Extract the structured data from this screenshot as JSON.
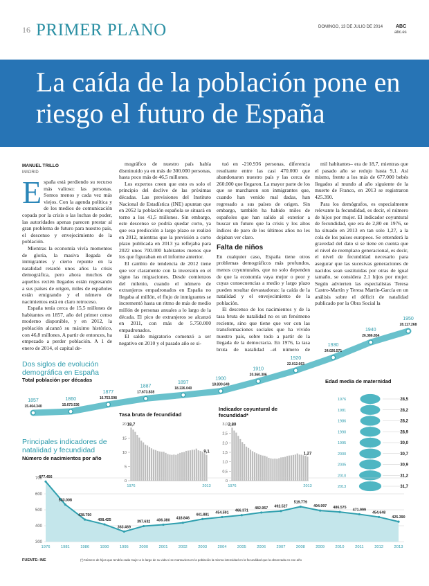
{
  "header": {
    "page_number": "16",
    "section": "PRIMER PLANO",
    "date": "DOMINGO, 13 DE JULIO DE 2014",
    "paper": "ABC",
    "website": "abc.es"
  },
  "headline": "La caída de la población pone en riesgo el futuro de España",
  "byline": {
    "author": "MANUEL TRILLO",
    "place": "MADRID"
  },
  "article": {
    "drop_cap": "E",
    "columns": [
      {
        "paragraphs": [
          "spaña está perdiendo su recurso más valioso: las personas. Somos menos y cada vez más viejos. Con la agenda política y de los medios de comunicación copada por la crisis o las luchas de poder, las autoridades apenas parecen prestar al gran problema de futuro para nuestro país, el descenso y envejecimiento de la población.",
          "Mientras la economía vivía momentos de gloria, la masiva llegada de inmigrantes y cierto repunte en la natalidad retardó unos años la crisis demográfica, pero ahora muchos de aquellos recién llegados están regresando a sus países de origen, miles de españoles están emigrando y el número de nacimientos está en claro retroceso.",
          "España tenía cerca de 15,5 millones de habitantes en 1857, año del primer censo moderno disponible, y en 2012, la población alcanzó su máximo histórico, con 46,8 millones. A partir de entonces, ha empezado a perder población. A 1 de enero de 2014, el capital de-"
        ]
      },
      {
        "paragraphs": [
          "mográfico de nuestro país había disminuido ya en más de 300.000 personas, hasta poco más de 46,5 millones.",
          "Los expertos creen que esto es solo el principio del declive de las próximas décadas. Las previsiones del Instituto Nacional de Estadística (INE) apuntan que en 2052 la población española se situará en torno a los 41,5 millones. Sin embargo, este descenso se podría quedar corto, ya que esa predicción a largo plazo se realizó en 2012, mientras que la previsión a corto plazo publicada en 2013 ya reflejaba para 2022 unos 700.000 habitantes menos que los que figuraban en el informe anterior.",
          "El cambio de tendencia de 2012 tiene que ver claramente con la inversión en el signo las migraciones. Desde comienzos del milenio, cuando el número de extranjeros empadronados en España no llegaba al millón, el flujo de inmigrantes se incrementó hasta un ritmo de más de medio millón de personas anuales a lo largo de la década. El pico de extranjeros se alcanzó en 2011, con más de 5.750.000 empadronados.",
          "El saldo migratorio comenzó a ser negativo en 2010 y el pasado año se si-"
        ]
      },
      {
        "paragraphs": [
          "tuó en -210.936 personas, diferencia resultante entre las casi 470.000 que abandonaron nuestro país y las cerca de 260.000 que llegaron. La mayor parte de los que se marcharon son inmigrantes que, cuando han venido mal dadas, han regresado a sus países de origen. Sin embargo, también ha habido miles de españoles que han salido al exterior a buscar un futuro que la crisis y los altos índices de paro de los últimos años no les dejaban ver claro."
        ],
        "subhead": "Falta de niños",
        "paragraphs_after": [
          "En cualquier caso, España tiene otros problemas demográficos más profundos, menos coyunturales, que no solo dependen de que la economía vaya mejor o peor y cuyas consecuencias a medio y largo plazo pueden resultar devastadoras: la caída de la natalidad y el envejecimiento de la población.",
          "El descenso de los nacimientos y de la tasa bruta de natalidad no es un fenómeno reciente, sino que tiene que ver con las transformaciones sociales que ha vivido nuestro país, sobre todo a partir de la llegada de la democracia. En 1976, la tasa bruta de natalidad –el número de nacimientos por cada"
        ]
      },
      {
        "paragraphs": [
          "mil habitantes– era de 18,7, mientras que el pasado año se redujo hasta 9,1. Así mismo, frente a los más de 677.000 bebés llegados al mundo al año siguiente de la muerte de Franco, en 2013 se registraron 425.390.",
          "Para los demógrafos, es especialmente relevante la fecundidad, es decir, el número de hijos por mujer. El indicador coyuntural de fecundidad, que era de 2,80 en 1976, se ha situado en 2013 en tan solo 1,27, a la cola de los países europeos. Se entenderá la gravedad del dato si se tiene en cuenta que el nivel de reemplazo generacional, es decir, el nivel de fecundidad necesario para asegurar que las sucesivas generaciones de nacidos sean sustituidas por otras de igual tamaño, se considera 2,1 hijos por mujer. Según advierten las especialistas Teresa Castro-Martín y Teresa Martín-García en un análisis sobre el déficit de natalidad publicado por la Obra Social la"
        ]
      }
    ]
  },
  "chart_data": [
    {
      "type": "line",
      "title": "Dos siglos de evolución demográfica en España",
      "subtitle": "Total población por décadas",
      "color": "#4fb6c3",
      "categories": [
        "1857",
        "1860",
        "1877",
        "1887",
        "1897",
        "1900",
        "1910",
        "1920",
        "1930",
        "1940",
        "1950"
      ],
      "values": [
        15464340,
        15673536,
        16753598,
        17673838,
        18226040,
        18830649,
        20360306,
        22012663,
        24026571,
        26386854,
        28117268
      ],
      "value_labels": [
        "15.464.340",
        "15.673.536",
        "16.753.598",
        "17.673.838",
        "18.226.040",
        "18.830.649",
        "20.360.306",
        "22.012.663",
        "24.026.571",
        "26.386.854",
        "28.117.268"
      ]
    },
    {
      "type": "bar",
      "title": "Tasa bruta de fecundidad",
      "color": "#bdbdbd",
      "categories": [
        "1976",
        null,
        null,
        null,
        null,
        null,
        null,
        null,
        null,
        null,
        null,
        null,
        null,
        null,
        null,
        null,
        null,
        null,
        null,
        null,
        null,
        null,
        null,
        null,
        null,
        null,
        null,
        null,
        null,
        null,
        null,
        null,
        null,
        null,
        null,
        null,
        null,
        "2013"
      ],
      "values": [
        18.7,
        18.0,
        17.2,
        16.1,
        15.2,
        14.1,
        13.5,
        12.7,
        12.4,
        11.9,
        11.4,
        11.0,
        10.8,
        10.5,
        10.3,
        10.2,
        10.2,
        9.8,
        9.4,
        9.2,
        9.1,
        9.2,
        9.1,
        9.5,
        9.8,
        10.0,
        10.1,
        10.5,
        10.6,
        10.7,
        10.9,
        10.9,
        11.3,
        10.7,
        10.5,
        10.2,
        9.7,
        9.1
      ],
      "value_labels": [
        "18,7",
        null,
        null,
        null,
        null,
        null,
        null,
        null,
        null,
        null,
        null,
        null,
        null,
        null,
        null,
        null,
        null,
        null,
        null,
        null,
        null,
        null,
        null,
        null,
        null,
        null,
        null,
        null,
        null,
        null,
        null,
        null,
        null,
        null,
        null,
        null,
        null,
        "9,1"
      ],
      "ylim": [
        0,
        20
      ],
      "yticks": [
        0,
        5,
        10,
        15,
        20
      ]
    },
    {
      "type": "bar",
      "title": "Indicador coyuntural de fecundidad*",
      "color": "#bdbdbd",
      "categories": [
        "1976",
        null,
        null,
        null,
        null,
        null,
        null,
        null,
        null,
        null,
        null,
        null,
        null,
        null,
        null,
        null,
        null,
        null,
        null,
        null,
        null,
        null,
        null,
        null,
        null,
        null,
        null,
        null,
        null,
        null,
        null,
        null,
        null,
        null,
        null,
        null,
        null,
        "2013"
      ],
      "values": [
        2.8,
        2.65,
        2.54,
        2.37,
        2.2,
        2.04,
        1.94,
        1.8,
        1.73,
        1.64,
        1.56,
        1.5,
        1.45,
        1.4,
        1.36,
        1.33,
        1.32,
        1.27,
        1.21,
        1.18,
        1.16,
        1.17,
        1.16,
        1.19,
        1.23,
        1.24,
        1.26,
        1.31,
        1.33,
        1.34,
        1.36,
        1.38,
        1.44,
        1.38,
        1.37,
        1.34,
        1.32,
        1.27
      ],
      "value_labels": [
        "2,80",
        null,
        null,
        null,
        null,
        null,
        null,
        null,
        null,
        null,
        null,
        null,
        null,
        null,
        null,
        null,
        null,
        null,
        null,
        null,
        null,
        null,
        null,
        null,
        null,
        null,
        null,
        null,
        null,
        null,
        null,
        null,
        null,
        null,
        null,
        null,
        null,
        "1,27"
      ],
      "ylim": [
        0,
        3
      ],
      "yticks": [
        0,
        {
          "value": 0.5,
          "label": "0,5"
        },
        {
          "value": 1,
          "label": "1,0"
        },
        {
          "value": 1.5,
          "label": "1,5"
        },
        {
          "value": 2,
          "label": "2,0"
        },
        {
          "value": 2.5,
          "label": "2,5"
        },
        {
          "value": 3,
          "label": "3,0"
        }
      ]
    },
    {
      "type": "dot",
      "title": "Edad media de maternidad",
      "color": "#4fb6c3",
      "categories": [
        "1976",
        "1981",
        "1986",
        "1990",
        "1995",
        "2000",
        "2005",
        "2010",
        "2013"
      ],
      "values": [
        28.5,
        28.2,
        28.2,
        28.9,
        30.0,
        30.7,
        30.9,
        31.2,
        31.7
      ],
      "value_labels": [
        "28,5",
        "28,2",
        "28,2",
        "28,9",
        "30,0",
        "30,7",
        "30,9",
        "31,2",
        "31,7"
      ]
    },
    {
      "type": "area",
      "title": "Principales indicadores de natalidad y fecundidad",
      "subtitle": "Número de nacimientos por año",
      "color": "#2f9fae",
      "fill": "#c4e6eb",
      "categories": [
        "1976",
        "1981",
        "1986",
        "1990",
        "1995",
        "2000",
        "2001",
        "2002",
        "2003",
        "2004",
        "2005",
        "2006",
        "2007",
        "2008",
        "2009",
        "2010",
        "2011",
        "2012",
        "2013"
      ],
      "values": [
        677.456,
        533.008,
        438.75,
        408.425,
        363.469,
        397.632,
        406.38,
        418.846,
        441.881,
        454.591,
        466.371,
        482.957,
        492.527,
        519.779,
        494.997,
        486.575,
        471.999,
        454.648,
        425.39
      ],
      "value_labels": [
        "677.456",
        "533.008",
        "438.750",
        "408.425",
        "363.469",
        "397.632",
        "406.380",
        "418.846",
        "441.881",
        "454.591",
        "466.371",
        "482.957",
        "492.527",
        "519.779",
        "494.997",
        "486.575",
        "471.999",
        "454.648",
        "425.390"
      ],
      "ylim": [
        300,
        700
      ],
      "yticks": [
        300,
        400,
        500,
        600,
        700
      ],
      "grid": true
    }
  ],
  "footer": {
    "source": "FUENTE: INE",
    "note": "(*) Número de hijos que tendría cada mujer a lo largo de su vida si se mantuviera en la población la misma intensidad en la fecundidad que la observada en ese año"
  }
}
